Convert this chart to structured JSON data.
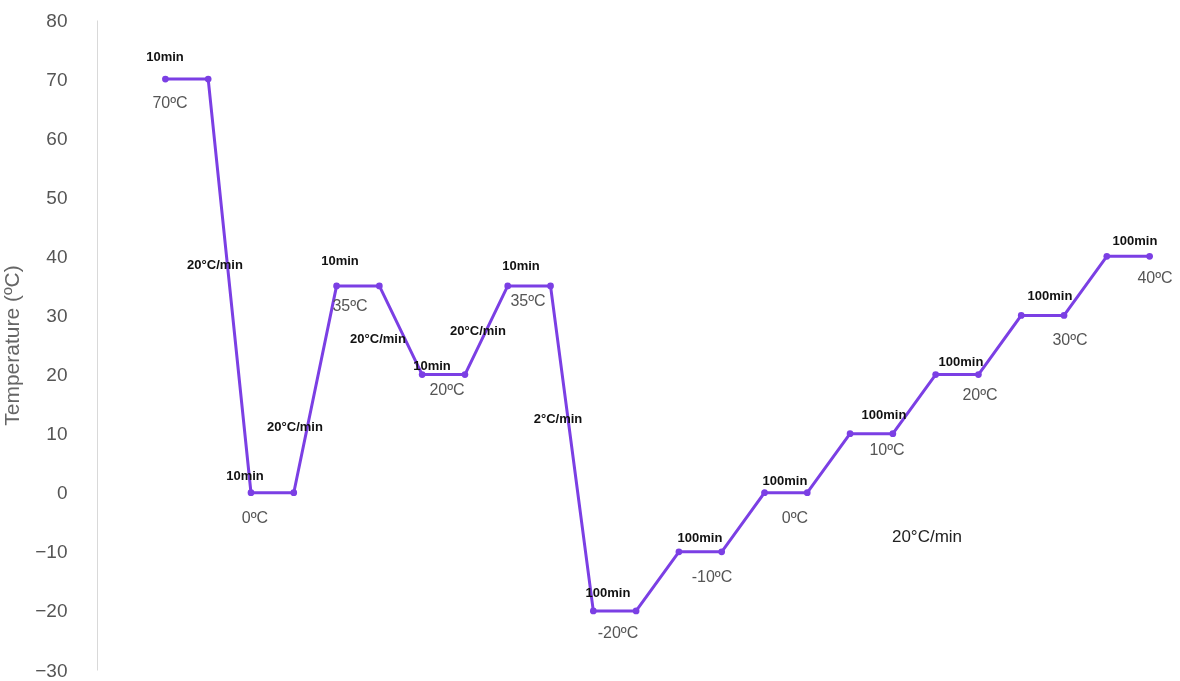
{
  "chart_data": {
    "type": "line",
    "ylabel": "Temperature (ºC)",
    "categories": [
      null,
      null,
      null,
      null,
      null,
      null,
      null,
      null,
      null,
      null,
      null,
      null,
      null,
      null,
      null,
      null,
      null,
      null,
      null,
      null,
      null,
      null,
      null,
      null
    ],
    "series": [
      {
        "color": "#7b3fe4",
        "values": [
          70,
          70,
          0,
          0,
          35,
          35,
          20,
          20,
          35,
          35,
          -20,
          -20,
          -10,
          -10,
          0,
          0,
          10,
          10,
          20,
          20,
          30,
          30,
          40,
          40
        ]
      }
    ],
    "ylim": [
      -30,
      80
    ],
    "yticks": [
      -30,
      -20,
      -10,
      0,
      10,
      20,
      30,
      40,
      50,
      60,
      70,
      80
    ],
    "grid": false,
    "marker": "circle",
    "line_style": "solid",
    "annotations": [
      "10min",
      "70ºC",
      "20°C/min",
      "10min",
      "0ºC",
      "20°C/min",
      "10min",
      "35ºC",
      "20°C/min",
      "10min",
      "20ºC",
      "20°C/min",
      "10min",
      "35ºC",
      "2°C/min",
      "100min",
      "-20ºC",
      "100min",
      "-10ºC",
      "100min",
      "0ºC",
      "100min",
      "10ºC",
      "100min",
      "20ºC",
      "100min",
      "30ºC",
      "100min",
      "40ºC",
      "20°C/min"
    ]
  }
}
